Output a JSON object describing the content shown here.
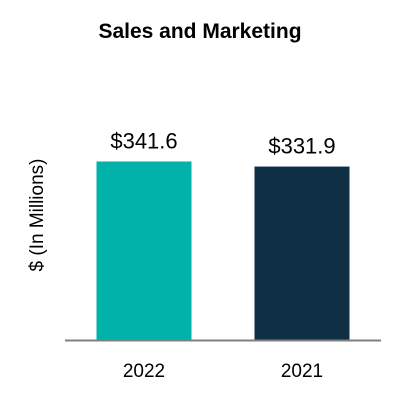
{
  "chart_data": {
    "type": "bar",
    "title": "Sales and Marketing",
    "ylabel": "$ (In Millions)",
    "xlabel": "",
    "categories": [
      "2022",
      "2021"
    ],
    "values": [
      341.6,
      331.9
    ],
    "data_labels": [
      "$341.6",
      "$331.9"
    ],
    "colors": [
      "#00b2a9",
      "#0e2f44"
    ],
    "ylim": [
      0,
      400
    ],
    "grid": false,
    "legend": "none"
  }
}
